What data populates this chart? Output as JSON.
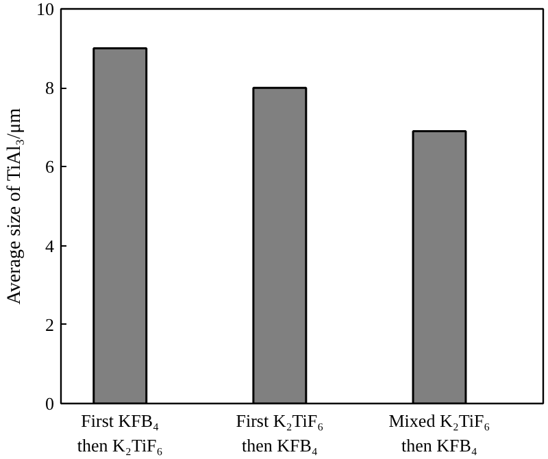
{
  "chart_data": {
    "type": "bar",
    "ylabel": "Average size of TiAl₃/μm",
    "categories": [
      "First KFB₄\nthen K₂TiF₆",
      "First K₂TiF₆\nthen KFB₄",
      "Mixed K₂TiF₆\nthen KFB₄"
    ],
    "values": [
      9.0,
      8.0,
      6.9
    ],
    "color": "#808080",
    "ylim": [
      0,
      10
    ],
    "yticks": [
      0,
      2,
      4,
      6,
      8,
      10
    ],
    "grid": false
  }
}
